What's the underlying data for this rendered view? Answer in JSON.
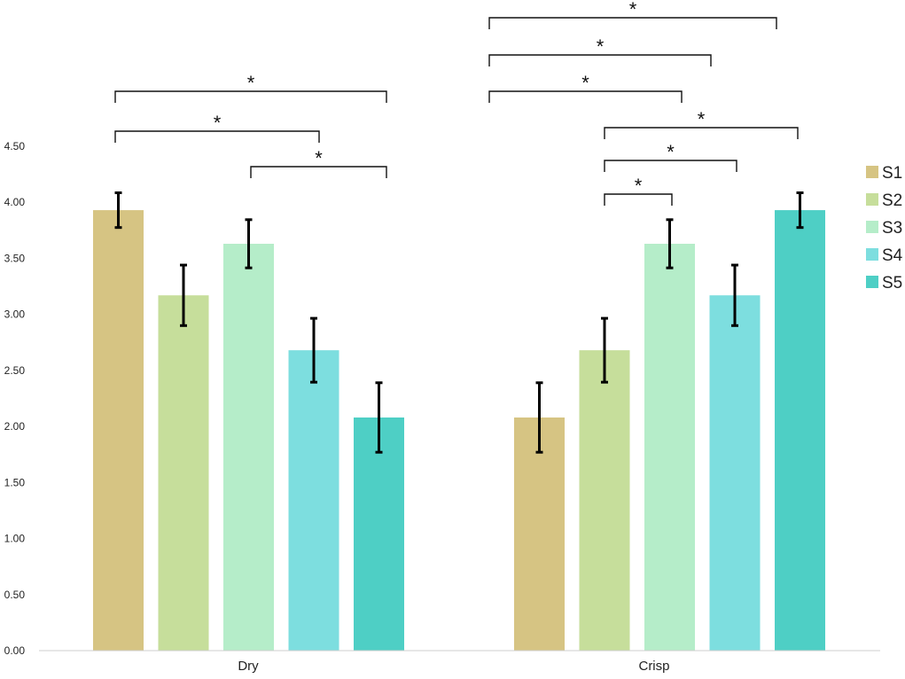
{
  "chart_data": {
    "type": "bar",
    "categories": [
      "Dry",
      "Crisp"
    ],
    "series": [
      {
        "name": "S1",
        "color": "#d6c483",
        "values": [
          3.93,
          2.08
        ],
        "errors": [
          0.155,
          0.31
        ]
      },
      {
        "name": "S2",
        "color": "#c6de9b",
        "values": [
          3.17,
          2.68
        ],
        "errors": [
          0.27,
          0.285
        ]
      },
      {
        "name": "S3",
        "color": "#b5edc9",
        "values": [
          3.63,
          3.63
        ],
        "errors": [
          0.215,
          0.215
        ]
      },
      {
        "name": "S4",
        "color": "#7ddedf",
        "values": [
          2.68,
          3.17
        ],
        "errors": [
          0.285,
          0.27
        ]
      },
      {
        "name": "S5",
        "color": "#4ecfc5",
        "values": [
          2.08,
          3.93
        ],
        "errors": [
          0.31,
          0.155
        ]
      }
    ],
    "ylim": [
      0,
      4.5
    ],
    "yticks": [
      "0.00",
      "0.50",
      "1.00",
      "1.50",
      "2.00",
      "2.50",
      "3.00",
      "3.50",
      "4.00",
      "4.50"
    ],
    "xlabel": "",
    "ylabel": "",
    "grid": false,
    "legend": {
      "position": "right"
    },
    "significance": [
      {
        "category": "Dry",
        "from": "S1",
        "to": "S5",
        "label": "*"
      },
      {
        "category": "Dry",
        "from": "S1",
        "to": "S4",
        "label": "*"
      },
      {
        "category": "Dry",
        "from": "S3",
        "to": "S5",
        "label": "*"
      },
      {
        "category": "Crisp",
        "from": "S1",
        "to": "S5",
        "label": "*"
      },
      {
        "category": "Crisp",
        "from": "S1",
        "to": "S4",
        "label": "*"
      },
      {
        "category": "Crisp",
        "from": "S1",
        "to": "S3",
        "label": "*"
      },
      {
        "category": "Crisp",
        "from": "S2",
        "to": "S5",
        "label": "*"
      },
      {
        "category": "Crisp",
        "from": "S2",
        "to": "S4",
        "label": "*"
      },
      {
        "category": "Crisp",
        "from": "S2",
        "to": "S3",
        "label": "*"
      }
    ]
  }
}
